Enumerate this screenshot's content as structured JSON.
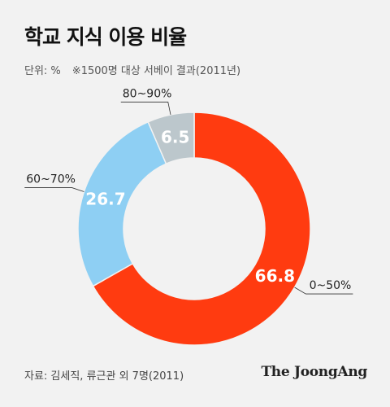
{
  "header": {
    "title": "학교 지식 이용 비율",
    "unit": "단위: %",
    "note": "※1500명 대상 서베이 결과(2011년)"
  },
  "footer": {
    "source": "자료: 김세직, 류근관 외 7명(2011)",
    "brand": "The JoongAng"
  },
  "colors": {
    "background": "#f2f2f2",
    "slices": [
      "#ff3b10",
      "#8ecff3",
      "#bcc7cc"
    ]
  },
  "chart_data": {
    "type": "pie",
    "variant": "donut",
    "title": "학교 지식 이용 비율",
    "unit": "%",
    "slices": [
      {
        "label": "0~50%",
        "value": 66.8,
        "value_label": "66.8"
      },
      {
        "label": "60~70%",
        "value": 26.7,
        "value_label": "26.7"
      },
      {
        "label": "80~90%",
        "value": 6.5,
        "value_label": "6.5"
      }
    ]
  }
}
